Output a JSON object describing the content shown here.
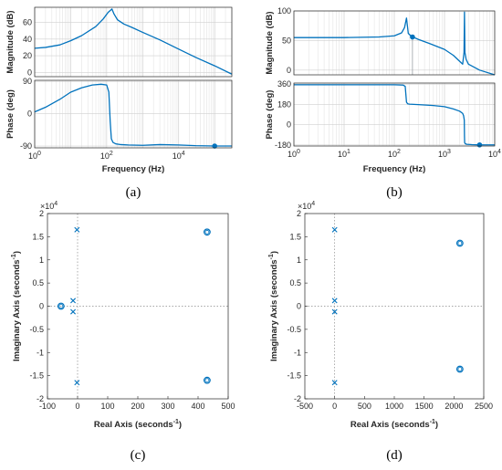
{
  "chart_data": [
    {
      "id": "a",
      "type": "line",
      "caption": "(a)",
      "xlabel": "Frequency  (Hz)",
      "x_ticks": [
        "10^0",
        "10^2",
        "10^4"
      ],
      "xscale": "log",
      "xlim": [
        1,
        300000
      ],
      "grid": true,
      "color": "#0072BD",
      "panels": [
        {
          "ylabel": "Magnitude (dB)",
          "ylim": [
            -5,
            78
          ],
          "yticks": [
            0,
            20,
            40,
            60
          ],
          "series": [
            {
              "x": [
                1,
                2,
                5,
                10,
                20,
                50,
                80,
                110,
                140,
                160,
                200,
                300,
                500,
                1000,
                3000,
                10000,
                30000,
                100000,
                300000
              ],
              "y": [
                29,
                30,
                33,
                38,
                44,
                55,
                64,
                72,
                76,
                70,
                63,
                58,
                54,
                48,
                39,
                28,
                18,
                8,
                -2
              ]
            }
          ]
        },
        {
          "ylabel": "Phase (deg)",
          "ylim": [
            -95,
            93
          ],
          "yticks": [
            -90,
            0,
            90
          ],
          "series": [
            {
              "x": [
                1,
                2,
                5,
                10,
                20,
                40,
                70,
                100,
                115,
                125,
                135,
                150,
                180,
                250,
                400,
                1000,
                3000,
                10000,
                30000,
                100000,
                300000
              ],
              "y": [
                5,
                18,
                40,
                60,
                72,
                80,
                82,
                80,
                60,
                -20,
                -70,
                -80,
                -84,
                -86,
                -87,
                -88,
                -86,
                -87,
                -89,
                -90,
                -90
              ]
            }
          ],
          "marker": {
            "x": 100000,
            "y": -90
          }
        }
      ]
    },
    {
      "id": "b",
      "type": "line",
      "caption": "(b)",
      "xlabel": "Frequency  (Hz)",
      "x_ticks": [
        "10^0",
        "10^1",
        "10^2",
        "10^3",
        "10^4"
      ],
      "xscale": "log",
      "xlim": [
        1,
        10000
      ],
      "grid": true,
      "color": "#0072BD",
      "panels": [
        {
          "ylabel": "Magnitude (dB)",
          "ylim": [
            -8,
            100
          ],
          "yticks": [
            0,
            50,
            100
          ],
          "series": [
            {
              "x": [
                1,
                10,
                50,
                100,
                140,
                160,
                175,
                190,
                220,
                300,
                500,
                1000,
                1500,
                2000,
                2300,
                2450,
                2500,
                2550,
                2700,
                3000,
                5000,
                10000
              ],
              "y": [
                55,
                55,
                56,
                58,
                63,
                72,
                88,
                62,
                57,
                52,
                45,
                35,
                25,
                15,
                10,
                30,
                98,
                30,
                18,
                10,
                0,
                -8
              ]
            }
          ],
          "marker": {
            "x": 230,
            "y": 56
          },
          "dropline": {
            "x": 230
          }
        },
        {
          "ylabel": "Phase (deg)",
          "ylim": [
            -190,
            370
          ],
          "yticks": [
            -180,
            0,
            180,
            360
          ],
          "series": [
            {
              "x": [
                1,
                10,
                100,
                150,
                165,
                175,
                185,
                200,
                300,
                600,
                1000,
                1500,
                2000,
                2300,
                2400,
                2480,
                2500,
                2520,
                2600,
                2800,
                3500,
                5000,
                10000
              ],
              "y": [
                355,
                355,
                355,
                352,
                340,
                200,
                185,
                182,
                178,
                170,
                160,
                140,
                120,
                100,
                80,
                40,
                -100,
                -160,
                -170,
                -175,
                -178,
                -180,
                -180
              ]
            }
          ],
          "marker": {
            "x": 5000,
            "y": -180
          }
        }
      ]
    },
    {
      "id": "c",
      "type": "scatter",
      "caption": "(c)",
      "xlabel": "Real Axis (seconds",
      "ylabel": "Imaginary Axis (seconds",
      "unit_sup": "-1",
      "multiplier": "×10^4",
      "xlim": [
        -100,
        500
      ],
      "ylim": [
        -2,
        2
      ],
      "xticks": [
        -100,
        0,
        100,
        200,
        300,
        400,
        500
      ],
      "yticks": [
        -2,
        -1.5,
        -1,
        -0.5,
        0,
        0.5,
        1,
        1.5,
        2
      ],
      "color": "#0072BD",
      "poles": [
        [
          -2,
          1.65
        ],
        [
          -2,
          -1.65
        ],
        [
          -15,
          0.12
        ],
        [
          -15,
          -0.12
        ]
      ],
      "zeros": [
        [
          -55,
          0.0
        ],
        [
          430,
          1.6
        ],
        [
          430,
          -1.6
        ]
      ]
    },
    {
      "id": "d",
      "type": "scatter",
      "caption": "(d)",
      "xlabel": "Real Axis (seconds",
      "ylabel": "Imaginary Axis (seconds",
      "unit_sup": "-1",
      "multiplier": "×10^4",
      "xlim": [
        -500,
        2500
      ],
      "ylim": [
        -2,
        2
      ],
      "xticks": [
        -500,
        0,
        500,
        1000,
        1500,
        2000,
        2500
      ],
      "yticks": [
        -2,
        -1.5,
        -1,
        -0.5,
        0,
        0.5,
        1,
        1.5,
        2
      ],
      "color": "#0072BD",
      "poles": [
        [
          0,
          1.65
        ],
        [
          0,
          -1.65
        ],
        [
          0,
          0.12
        ],
        [
          0,
          -0.12
        ]
      ],
      "zeros": [
        [
          2100,
          1.36
        ],
        [
          2100,
          -1.36
        ]
      ]
    }
  ]
}
